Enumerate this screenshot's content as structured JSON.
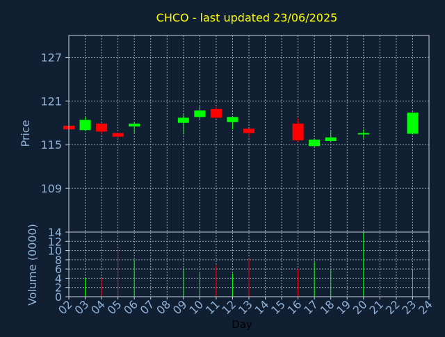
{
  "chart_data": {
    "type": "candlestick",
    "title": "CHCO - last updated 23/06/2025",
    "colors": {
      "background": "#111f33",
      "title": "#ffff00",
      "axis_text": "#8fb2d6",
      "axis_label": "#000000",
      "frame": "#c8d2dc",
      "grid": "#9aa8b8",
      "up": "#00ff00",
      "down": "#ff0000"
    },
    "days": [
      "02",
      "03",
      "04",
      "05",
      "06",
      "07",
      "08",
      "09",
      "10",
      "11",
      "12",
      "13",
      "14",
      "15",
      "16",
      "17",
      "18",
      "19",
      "20",
      "21",
      "22",
      "23",
      "24"
    ],
    "xlabel": "Day",
    "price_panel": {
      "ylabel": "Price",
      "ylim": [
        103,
        130
      ],
      "yticks": [
        "109",
        "115",
        "121",
        "127"
      ]
    },
    "volume_panel": {
      "ylabel": "Volume (0000)",
      "ylim": [
        0,
        14
      ],
      "yticks": [
        "0",
        "2",
        "4",
        "6",
        "8",
        "10",
        "12",
        "14"
      ]
    },
    "candles": [
      {
        "day": "02",
        "open": 117.6,
        "close": 117.1,
        "high": 117.6,
        "low": 117.1,
        "volume": 0
      },
      {
        "day": "03",
        "open": 117.0,
        "close": 118.4,
        "high": 118.8,
        "low": 116.9,
        "volume": 4.0
      },
      {
        "day": "04",
        "open": 117.9,
        "close": 116.8,
        "high": 117.9,
        "low": 116.4,
        "volume": 4.0
      },
      {
        "day": "05",
        "open": 116.6,
        "close": 116.1,
        "high": 116.6,
        "low": 115.8,
        "volume": 10.3
      },
      {
        "day": "06",
        "open": 117.5,
        "close": 117.9,
        "high": 118.1,
        "low": 116.5,
        "volume": 8.0
      },
      {
        "day": "09",
        "open": 118.0,
        "close": 118.7,
        "high": 119.1,
        "low": 116.4,
        "volume": 6.2
      },
      {
        "day": "10",
        "open": 118.8,
        "close": 119.7,
        "high": 120.3,
        "low": 118.4,
        "volume": 5.2
      },
      {
        "day": "11",
        "open": 119.9,
        "close": 118.7,
        "high": 120.2,
        "low": 118.6,
        "volume": 6.8
      },
      {
        "day": "12",
        "open": 118.1,
        "close": 118.8,
        "high": 118.8,
        "low": 117.1,
        "volume": 5.0
      },
      {
        "day": "13",
        "open": 117.2,
        "close": 116.6,
        "high": 117.2,
        "low": 116.0,
        "volume": 8.3
      },
      {
        "day": "16",
        "open": 117.9,
        "close": 115.6,
        "high": 118.6,
        "low": 115.4,
        "volume": 6.0
      },
      {
        "day": "17",
        "open": 114.8,
        "close": 115.7,
        "high": 115.8,
        "low": 114.7,
        "volume": 7.5
      },
      {
        "day": "18",
        "open": 115.5,
        "close": 116.0,
        "high": 117.0,
        "low": 115.5,
        "volume": 6.0
      },
      {
        "day": "20",
        "open": 116.4,
        "close": 116.6,
        "high": 117.1,
        "low": 115.9,
        "volume": 14.0
      },
      {
        "day": "23",
        "open": 116.5,
        "close": 119.4,
        "high": 119.4,
        "low": 116.4,
        "volume": 6.0
      }
    ]
  }
}
